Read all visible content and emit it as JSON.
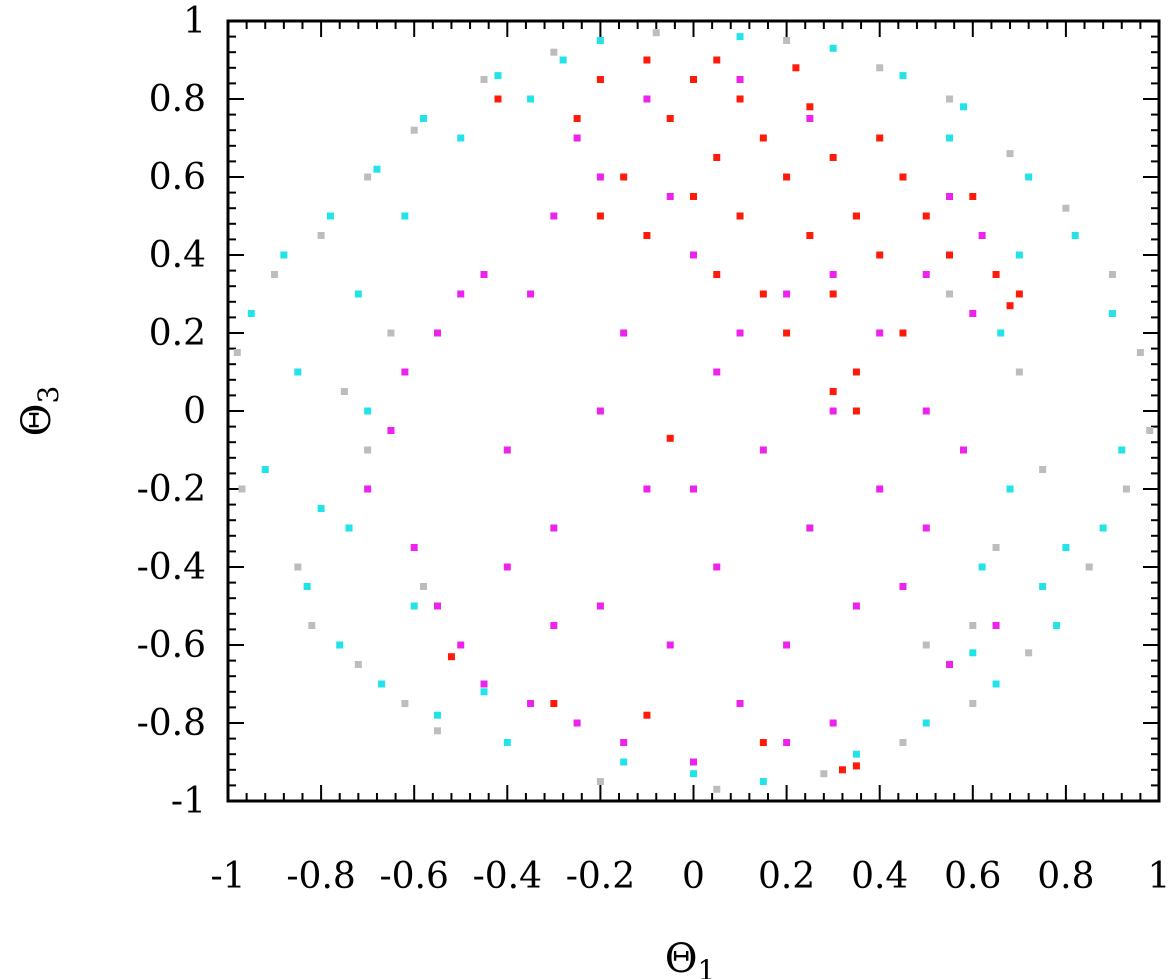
{
  "chart_data": {
    "type": "scatter",
    "title": "",
    "xlabel": "Θ",
    "xlabel_sub": "1",
    "ylabel": "Θ",
    "ylabel_sub": "3",
    "xlim": [
      -1,
      1
    ],
    "ylim": [
      -1,
      1
    ],
    "xticks": [
      -1,
      -0.8,
      -0.6,
      -0.4,
      -0.2,
      0,
      0.2,
      0.4,
      0.6,
      0.8,
      1
    ],
    "xtick_labels": [
      "-1",
      "-0.8",
      "-0.6",
      "-0.4",
      "-0.2",
      "0",
      "0.2",
      "0.4",
      "0.6",
      "0.8",
      "1"
    ],
    "yticks": [
      -1,
      -0.8,
      -0.6,
      -0.4,
      -0.2,
      0,
      0.2,
      0.4,
      0.6,
      0.8,
      1
    ],
    "ytick_labels": [
      "-1",
      "-0.8",
      "-0.6",
      "-0.4",
      "-0.2",
      "0",
      "0.2",
      "0.4",
      "0.6",
      "0.8",
      "1"
    ],
    "grid": false,
    "legend": "none",
    "series": [
      {
        "color": "#bdbdbd",
        "points": [
          [
            -0.98,
            0.15
          ],
          [
            -0.97,
            -0.2
          ],
          [
            -0.9,
            0.35
          ],
          [
            -0.85,
            -0.4
          ],
          [
            -0.8,
            0.45
          ],
          [
            -0.82,
            -0.55
          ],
          [
            -0.7,
            0.6
          ],
          [
            -0.72,
            -0.65
          ],
          [
            -0.6,
            0.72
          ],
          [
            -0.62,
            -0.75
          ],
          [
            -0.45,
            0.85
          ],
          [
            -0.55,
            -0.82
          ],
          [
            -0.3,
            0.92
          ],
          [
            -0.2,
            -0.95
          ],
          [
            -0.08,
            0.97
          ],
          [
            0.05,
            -0.97
          ],
          [
            0.2,
            0.95
          ],
          [
            0.28,
            -0.93
          ],
          [
            0.4,
            0.88
          ],
          [
            0.45,
            -0.85
          ],
          [
            0.55,
            0.8
          ],
          [
            0.6,
            -0.75
          ],
          [
            0.68,
            0.66
          ],
          [
            0.72,
            -0.62
          ],
          [
            0.8,
            0.52
          ],
          [
            0.85,
            -0.4
          ],
          [
            0.9,
            0.35
          ],
          [
            0.93,
            -0.2
          ],
          [
            0.96,
            0.15
          ],
          [
            0.98,
            -0.05
          ],
          [
            0.6,
            -0.55
          ],
          [
            0.65,
            -0.35
          ],
          [
            0.75,
            -0.15
          ],
          [
            0.7,
            0.1
          ],
          [
            -0.65,
            0.2
          ],
          [
            -0.7,
            -0.1
          ],
          [
            -0.75,
            0.05
          ],
          [
            -0.58,
            -0.45
          ],
          [
            0.5,
            -0.6
          ],
          [
            0.55,
            0.3
          ]
        ]
      },
      {
        "color": "#22e3e8",
        "points": [
          [
            -0.95,
            0.25
          ],
          [
            -0.92,
            -0.15
          ],
          [
            -0.88,
            0.4
          ],
          [
            -0.83,
            -0.45
          ],
          [
            -0.78,
            0.5
          ],
          [
            -0.76,
            -0.6
          ],
          [
            -0.68,
            0.62
          ],
          [
            -0.67,
            -0.7
          ],
          [
            -0.58,
            0.75
          ],
          [
            -0.55,
            -0.78
          ],
          [
            -0.42,
            0.86
          ],
          [
            -0.4,
            -0.85
          ],
          [
            -0.28,
            0.9
          ],
          [
            -0.15,
            -0.9
          ],
          [
            -0.2,
            0.95
          ],
          [
            0.0,
            -0.93
          ],
          [
            0.1,
            0.96
          ],
          [
            0.15,
            -0.95
          ],
          [
            0.3,
            0.93
          ],
          [
            0.35,
            -0.88
          ],
          [
            0.45,
            0.86
          ],
          [
            0.5,
            -0.8
          ],
          [
            0.58,
            0.78
          ],
          [
            0.65,
            -0.7
          ],
          [
            0.72,
            0.6
          ],
          [
            0.78,
            -0.55
          ],
          [
            0.82,
            0.45
          ],
          [
            0.88,
            -0.3
          ],
          [
            0.9,
            0.25
          ],
          [
            0.92,
            -0.1
          ],
          [
            -0.72,
            0.3
          ],
          [
            -0.74,
            -0.3
          ],
          [
            -0.7,
            0.0
          ],
          [
            -0.62,
            0.5
          ],
          [
            -0.6,
            -0.5
          ],
          [
            0.62,
            -0.4
          ],
          [
            0.68,
            -0.2
          ],
          [
            0.66,
            0.2
          ],
          [
            0.7,
            0.4
          ],
          [
            0.75,
            -0.45
          ],
          [
            -0.5,
            0.7
          ],
          [
            -0.35,
            0.8
          ],
          [
            0.55,
            0.7
          ],
          [
            0.6,
            -0.62
          ],
          [
            -0.45,
            -0.72
          ],
          [
            0.8,
            -0.35
          ],
          [
            -0.85,
            0.1
          ],
          [
            -0.8,
            -0.25
          ]
        ]
      },
      {
        "color": "#ee22ee",
        "points": [
          [
            -0.7,
            -0.2
          ],
          [
            -0.65,
            -0.05
          ],
          [
            -0.62,
            0.1
          ],
          [
            -0.6,
            -0.35
          ],
          [
            -0.55,
            0.2
          ],
          [
            -0.55,
            -0.5
          ],
          [
            -0.5,
            0.3
          ],
          [
            -0.5,
            -0.6
          ],
          [
            -0.45,
            0.35
          ],
          [
            -0.45,
            -0.7
          ],
          [
            -0.4,
            -0.1
          ],
          [
            -0.35,
            0.3
          ],
          [
            -0.35,
            -0.75
          ],
          [
            -0.3,
            0.5
          ],
          [
            -0.3,
            -0.3
          ],
          [
            -0.25,
            0.7
          ],
          [
            -0.25,
            -0.8
          ],
          [
            -0.2,
            0.6
          ],
          [
            -0.2,
            -0.5
          ],
          [
            -0.15,
            0.2
          ],
          [
            -0.15,
            -0.85
          ],
          [
            -0.1,
            0.8
          ],
          [
            -0.1,
            -0.2
          ],
          [
            -0.05,
            -0.6
          ],
          [
            0.0,
            0.4
          ],
          [
            0.0,
            -0.9
          ],
          [
            0.05,
            0.1
          ],
          [
            0.05,
            -0.4
          ],
          [
            0.1,
            0.85
          ],
          [
            0.1,
            -0.75
          ],
          [
            0.15,
            -0.1
          ],
          [
            0.2,
            0.3
          ],
          [
            0.2,
            -0.6
          ],
          [
            0.25,
            0.75
          ],
          [
            0.25,
            -0.3
          ],
          [
            0.3,
            0.0
          ],
          [
            0.3,
            -0.8
          ],
          [
            0.35,
            0.5
          ],
          [
            0.35,
            -0.5
          ],
          [
            0.4,
            0.2
          ],
          [
            0.4,
            -0.2
          ],
          [
            0.45,
            0.6
          ],
          [
            0.45,
            -0.45
          ],
          [
            0.5,
            0.0
          ],
          [
            0.5,
            0.35
          ],
          [
            0.5,
            -0.3
          ],
          [
            0.55,
            0.55
          ],
          [
            0.55,
            -0.65
          ],
          [
            0.58,
            -0.1
          ],
          [
            0.6,
            0.25
          ],
          [
            0.62,
            0.45
          ],
          [
            0.65,
            -0.55
          ],
          [
            -0.4,
            -0.4
          ],
          [
            -0.2,
            0.0
          ],
          [
            0.0,
            -0.2
          ],
          [
            0.1,
            0.2
          ],
          [
            -0.3,
            -0.55
          ],
          [
            0.2,
            -0.85
          ],
          [
            -0.05,
            0.55
          ],
          [
            0.3,
            0.35
          ]
        ]
      },
      {
        "color": "#ff1a0a",
        "points": [
          [
            -0.25,
            0.75
          ],
          [
            -0.2,
            0.85
          ],
          [
            -0.15,
            0.6
          ],
          [
            -0.1,
            0.9
          ],
          [
            -0.1,
            0.45
          ],
          [
            -0.05,
            0.75
          ],
          [
            0.0,
            0.55
          ],
          [
            0.0,
            0.85
          ],
          [
            0.05,
            0.35
          ],
          [
            0.05,
            0.65
          ],
          [
            0.1,
            0.8
          ],
          [
            0.1,
            0.5
          ],
          [
            0.15,
            0.3
          ],
          [
            0.15,
            0.7
          ],
          [
            0.2,
            0.6
          ],
          [
            0.2,
            0.2
          ],
          [
            0.25,
            0.45
          ],
          [
            0.25,
            0.78
          ],
          [
            0.3,
            0.3
          ],
          [
            0.3,
            0.65
          ],
          [
            0.35,
            0.1
          ],
          [
            0.35,
            0.5
          ],
          [
            0.4,
            0.4
          ],
          [
            0.4,
            0.7
          ],
          [
            0.45,
            0.2
          ],
          [
            0.45,
            0.6
          ],
          [
            0.5,
            0.5
          ],
          [
            0.55,
            0.4
          ],
          [
            0.6,
            0.55
          ],
          [
            0.65,
            0.35
          ],
          [
            0.7,
            0.3
          ],
          [
            0.68,
            0.27
          ],
          [
            0.35,
            0.0
          ],
          [
            0.3,
            0.05
          ],
          [
            -0.42,
            0.8
          ],
          [
            -0.52,
            -0.63
          ],
          [
            -0.05,
            -0.07
          ],
          [
            -0.3,
            -0.75
          ],
          [
            -0.1,
            -0.78
          ],
          [
            0.32,
            -0.92
          ],
          [
            0.35,
            -0.91
          ],
          [
            0.15,
            -0.85
          ],
          [
            -0.2,
            0.5
          ],
          [
            0.05,
            0.9
          ],
          [
            0.22,
            0.88
          ]
        ]
      }
    ]
  }
}
